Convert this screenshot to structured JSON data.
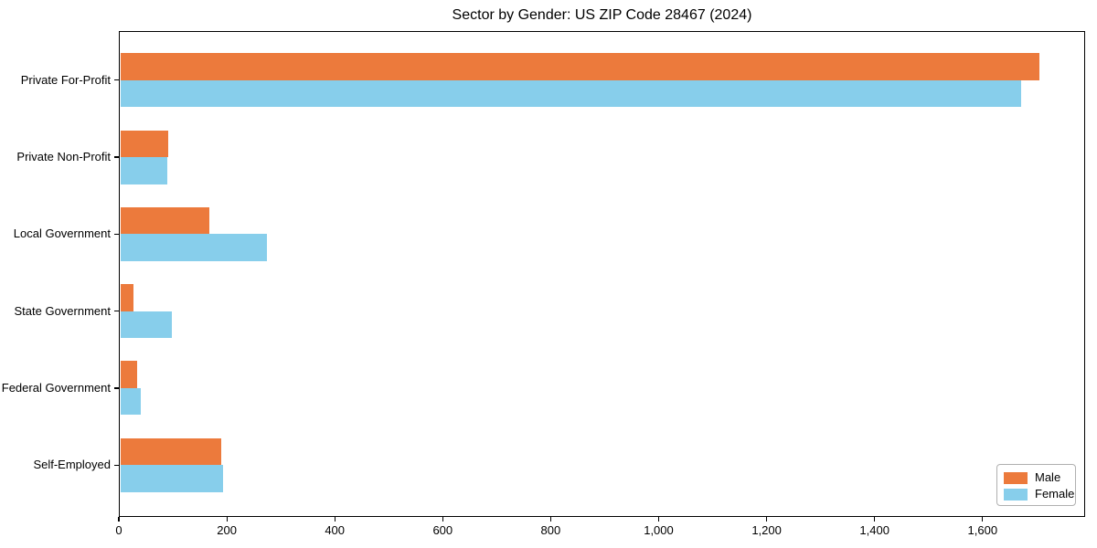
{
  "chart_data": {
    "type": "bar",
    "orientation": "horizontal",
    "title": "Sector by Gender: US ZIP Code 28467 (2024)",
    "categories": [
      "Private For-Profit",
      "Private Non-Profit",
      "Local Government",
      "State Government",
      "Federal Government",
      "Self-Employed"
    ],
    "series": [
      {
        "name": "Male",
        "color": "#EC7A3C",
        "values": [
          1705,
          91,
          167,
          27,
          34,
          189
        ]
      },
      {
        "name": "Female",
        "color": "#87CEEB",
        "values": [
          1672,
          90,
          275,
          98,
          40,
          193
        ]
      }
    ],
    "xlabel": "",
    "ylabel": "",
    "xlim": [
      0,
      1790
    ],
    "x_ticks": [
      0,
      200,
      400,
      600,
      800,
      1000,
      1200,
      1400,
      1600
    ],
    "x_tick_labels": [
      "0",
      "200",
      "400",
      "600",
      "800",
      "1,000",
      "1,200",
      "1,400",
      "1,600"
    ],
    "grid": false,
    "legend_position": "lower right"
  }
}
